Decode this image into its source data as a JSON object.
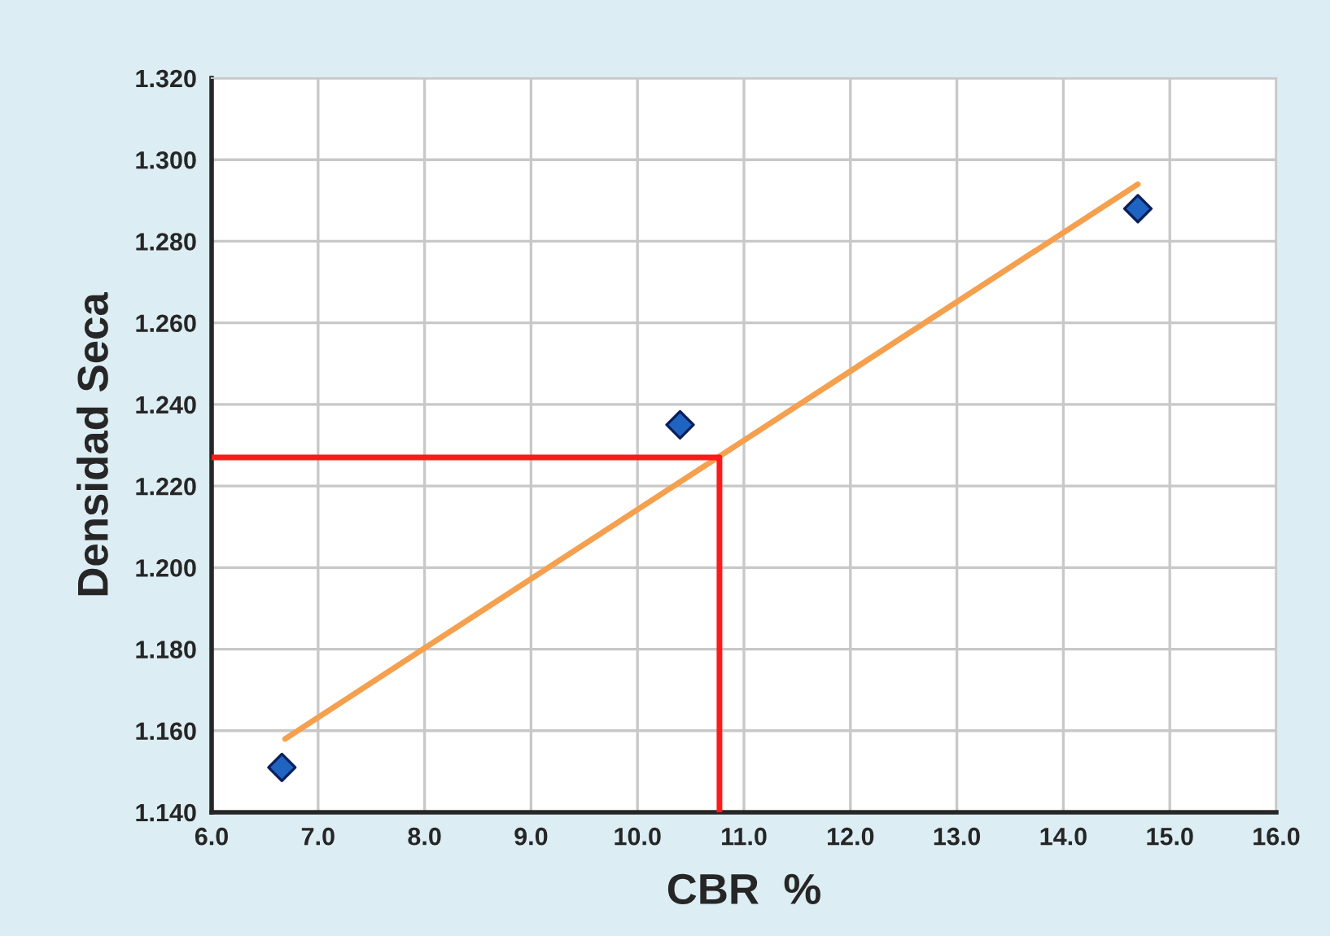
{
  "chart_data": {
    "type": "scatter",
    "xlabel": "CBR  %",
    "ylabel": "Densidad Seca",
    "xlim": [
      6.0,
      16.0
    ],
    "ylim": [
      1.14,
      1.32
    ],
    "xticks": [
      {
        "value": 6,
        "label": "6.0"
      },
      {
        "value": 7,
        "label": "7.0"
      },
      {
        "value": 8,
        "label": "8.0"
      },
      {
        "value": 9,
        "label": "9.0"
      },
      {
        "value": 10,
        "label": "10.0"
      },
      {
        "value": 11,
        "label": "11.0"
      },
      {
        "value": 12,
        "label": "12.0"
      },
      {
        "value": 13,
        "label": "13.0"
      },
      {
        "value": 14,
        "label": "14.0"
      },
      {
        "value": 15,
        "label": "15.0"
      },
      {
        "value": 16,
        "label": "16.0"
      }
    ],
    "yticks": [
      {
        "value": 1.14,
        "label": "1.140"
      },
      {
        "value": 1.16,
        "label": "1.160"
      },
      {
        "value": 1.18,
        "label": "1.180"
      },
      {
        "value": 1.2,
        "label": "1.200"
      },
      {
        "value": 1.22,
        "label": "1.220"
      },
      {
        "value": 1.24,
        "label": "1.240"
      },
      {
        "value": 1.26,
        "label": "1.260"
      },
      {
        "value": 1.28,
        "label": "1.280"
      },
      {
        "value": 1.3,
        "label": "1.300"
      },
      {
        "value": 1.32,
        "label": "1.320"
      }
    ],
    "grid": true,
    "series": [
      {
        "marker": "diamond",
        "color": "#1f64c0",
        "x": [
          6.66,
          10.4,
          14.7
        ],
        "values": [
          1.151,
          1.235,
          1.288
        ]
      },
      {
        "type": "line",
        "marker": "none",
        "line_style": "solid",
        "color": "#f5a04e",
        "x": [
          6.69,
          14.7
        ],
        "values": [
          1.158,
          1.294
        ]
      },
      {
        "type": "line",
        "marker": "none",
        "line_style": "solid",
        "color": "#ff1a1a",
        "x": [
          6.0,
          10.77,
          10.77
        ],
        "values": [
          1.227,
          1.227,
          1.14
        ]
      }
    ]
  }
}
